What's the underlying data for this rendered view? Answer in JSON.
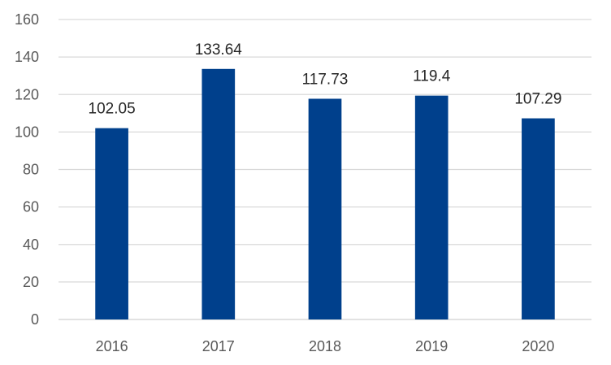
{
  "chart_data": {
    "type": "bar",
    "categories": [
      "2016",
      "2017",
      "2018",
      "2019",
      "2020"
    ],
    "values": [
      102.05,
      133.64,
      117.73,
      119.4,
      107.29
    ],
    "data_labels": [
      "102.05",
      "133.64",
      "117.73",
      "119.4",
      "107.29"
    ],
    "ylim": [
      0,
      160
    ],
    "yticks": [
      "0",
      "20",
      "40",
      "60",
      "80",
      "100",
      "120",
      "140",
      "160"
    ],
    "grid": true,
    "legend": "none",
    "bar_color": "#00408C"
  }
}
